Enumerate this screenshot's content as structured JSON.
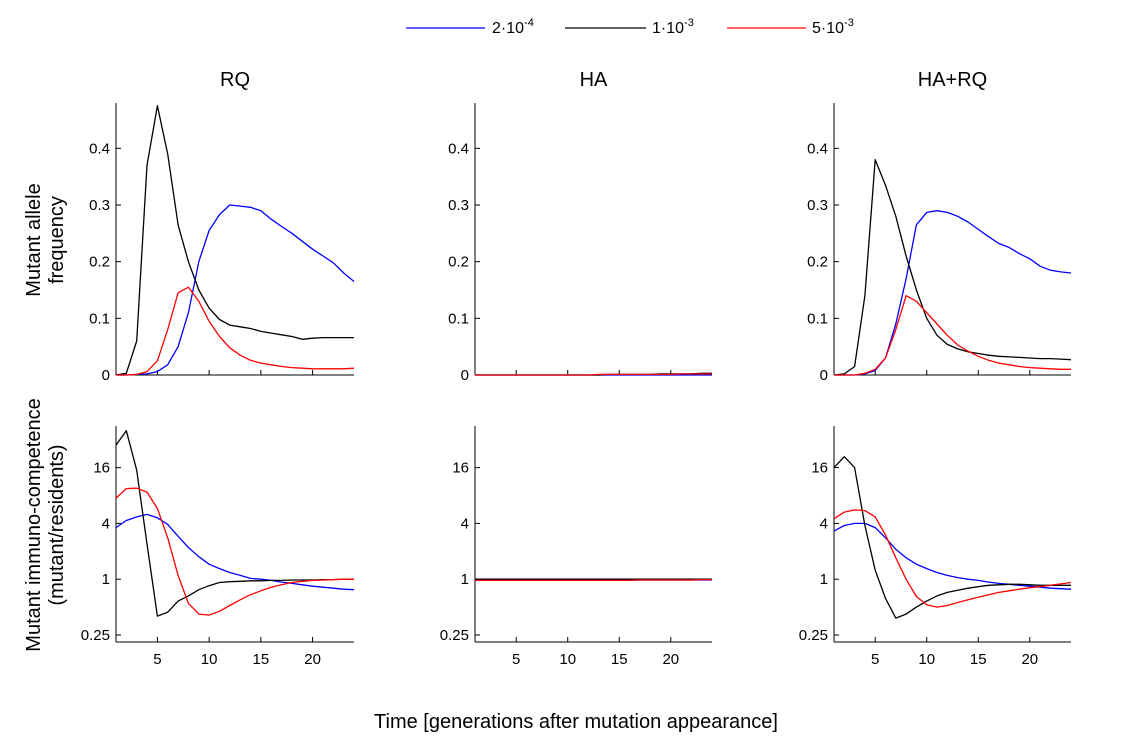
{
  "legend": [
    {
      "mantissa": "2·10",
      "exponent": "-4",
      "color": "#0000ff"
    },
    {
      "mantissa": "1·10",
      "exponent": "-3",
      "color": "#000000"
    },
    {
      "mantissa": "5·10",
      "exponent": "-3",
      "color": "#ff0000"
    }
  ],
  "x_axis_label": "Time [generations after mutation appearance]",
  "top_row_ylabel": [
    "Mutant allele",
    "frequency"
  ],
  "bottom_row_ylabel": [
    "Mutant immuno-competence",
    "(mutant/residents)"
  ],
  "chart_data": [
    {
      "type": "line",
      "title": "RQ",
      "xlim": [
        1,
        24
      ],
      "ylim": [
        0,
        0.48
      ],
      "xticks": [
        5,
        10,
        15,
        20
      ],
      "xtick_labels": [
        "5",
        "10",
        "15",
        "20"
      ],
      "yticks": [
        0,
        0.1,
        0.2,
        0.3,
        0.4
      ],
      "ytick_labels": [
        "0",
        "0.1",
        "0.2",
        "0.3",
        "0.4"
      ],
      "x": [
        1,
        2,
        3,
        4,
        5,
        6,
        7,
        8,
        9,
        10,
        11,
        12,
        13,
        14,
        15,
        16,
        17,
        18,
        19,
        20,
        21,
        22,
        23,
        24
      ],
      "series": [
        {
          "name": "2·10^-4",
          "color": "#0000ff",
          "values": [
            0,
            0,
            0.001,
            0.002,
            0.006,
            0.018,
            0.05,
            0.11,
            0.2,
            0.255,
            0.283,
            0.3,
            0.298,
            0.296,
            0.29,
            0.275,
            0.262,
            0.25,
            0.236,
            0.222,
            0.21,
            0.198,
            0.18,
            0.165
          ]
        },
        {
          "name": "1·10^-3",
          "color": "#000000",
          "values": [
            0,
            0.003,
            0.06,
            0.37,
            0.475,
            0.39,
            0.265,
            0.2,
            0.15,
            0.118,
            0.098,
            0.088,
            0.085,
            0.082,
            0.077,
            0.074,
            0.071,
            0.068,
            0.063,
            0.065,
            0.066,
            0.066,
            0.066,
            0.066
          ]
        },
        {
          "name": "5·10^-3",
          "color": "#ff0000",
          "values": [
            0,
            0,
            0.001,
            0.006,
            0.025,
            0.08,
            0.145,
            0.155,
            0.13,
            0.095,
            0.068,
            0.048,
            0.035,
            0.026,
            0.021,
            0.018,
            0.015,
            0.013,
            0.012,
            0.011,
            0.011,
            0.011,
            0.011,
            0.012
          ]
        }
      ]
    },
    {
      "type": "line",
      "title": "HA",
      "xlim": [
        1,
        24
      ],
      "ylim": [
        0,
        0.48
      ],
      "xticks": [
        5,
        10,
        15,
        20
      ],
      "xtick_labels": [
        "5",
        "10",
        "15",
        "20"
      ],
      "yticks": [
        0,
        0.1,
        0.2,
        0.3,
        0.4
      ],
      "ytick_labels": [
        "0",
        "0.1",
        "0.2",
        "0.3",
        "0.4"
      ],
      "x": [
        1,
        2,
        3,
        4,
        5,
        6,
        7,
        8,
        9,
        10,
        11,
        12,
        13,
        14,
        15,
        16,
        17,
        18,
        19,
        20,
        21,
        22,
        23,
        24
      ],
      "series": [
        {
          "name": "2·10^-4",
          "color": "#0000ff",
          "values": [
            0,
            0,
            0,
            0,
            0,
            0,
            0,
            0,
            0,
            0,
            0,
            0,
            0,
            0,
            0,
            0,
            0,
            0,
            0,
            0,
            0,
            0,
            0,
            0
          ]
        },
        {
          "name": "1·10^-3",
          "color": "#000000",
          "values": [
            0,
            0,
            0,
            0,
            0,
            0,
            0,
            0,
            0,
            0,
            0,
            0,
            0,
            0.001,
            0.001,
            0.001,
            0.001,
            0.001,
            0.002,
            0.002,
            0.002,
            0.002,
            0.003,
            0.003
          ]
        },
        {
          "name": "5·10^-3",
          "color": "#ff0000",
          "values": [
            0,
            0,
            0,
            0,
            0,
            0,
            0,
            0,
            0,
            0,
            0,
            0,
            0.001,
            0.001,
            0.001,
            0.001,
            0.001,
            0.001,
            0.001,
            0.001,
            0.002,
            0.002,
            0.002,
            0.002
          ]
        }
      ]
    },
    {
      "type": "line",
      "title": "HA+RQ",
      "xlim": [
        1,
        24
      ],
      "ylim": [
        0,
        0.48
      ],
      "xticks": [
        5,
        10,
        15,
        20
      ],
      "xtick_labels": [
        "5",
        "10",
        "15",
        "20"
      ],
      "yticks": [
        0,
        0.1,
        0.2,
        0.3,
        0.4
      ],
      "ytick_labels": [
        "0",
        "0.1",
        "0.2",
        "0.3",
        "0.4"
      ],
      "x": [
        1,
        2,
        3,
        4,
        5,
        6,
        7,
        8,
        9,
        10,
        11,
        12,
        13,
        14,
        15,
        16,
        17,
        18,
        19,
        20,
        21,
        22,
        23,
        24
      ],
      "series": [
        {
          "name": "2·10^-4",
          "color": "#0000ff",
          "values": [
            0,
            0,
            0,
            0.002,
            0.008,
            0.03,
            0.09,
            0.17,
            0.265,
            0.287,
            0.29,
            0.287,
            0.28,
            0.27,
            0.257,
            0.244,
            0.232,
            0.225,
            0.214,
            0.205,
            0.192,
            0.185,
            0.182,
            0.18
          ]
        },
        {
          "name": "1·10^-3",
          "color": "#000000",
          "values": [
            0,
            0.002,
            0.015,
            0.14,
            0.38,
            0.335,
            0.28,
            0.21,
            0.15,
            0.1,
            0.07,
            0.054,
            0.046,
            0.041,
            0.038,
            0.035,
            0.033,
            0.032,
            0.031,
            0.03,
            0.029,
            0.029,
            0.028,
            0.027
          ]
        },
        {
          "name": "5·10^-3",
          "color": "#ff0000",
          "values": [
            0,
            0,
            0,
            0.003,
            0.01,
            0.03,
            0.08,
            0.14,
            0.13,
            0.11,
            0.09,
            0.07,
            0.053,
            0.042,
            0.033,
            0.026,
            0.021,
            0.018,
            0.015,
            0.013,
            0.012,
            0.011,
            0.01,
            0.01
          ]
        }
      ]
    },
    {
      "type": "line",
      "title": "",
      "xlim": [
        1,
        24
      ],
      "ylim": [
        0.21,
        45
      ],
      "yscale": "log2",
      "xticks": [
        5,
        10,
        15,
        20
      ],
      "xtick_labels": [
        "5",
        "10",
        "15",
        "20"
      ],
      "yticks": [
        0.25,
        1,
        4,
        16
      ],
      "ytick_labels": [
        "0.25",
        "1",
        "4",
        "16"
      ],
      "x": [
        1,
        2,
        3,
        4,
        5,
        6,
        7,
        8,
        9,
        10,
        11,
        12,
        13,
        14,
        15,
        16,
        17,
        18,
        19,
        20,
        21,
        22,
        23,
        24
      ],
      "series": [
        {
          "name": "2·10^-4",
          "color": "#0000ff",
          "values": [
            3.6,
            4.3,
            4.7,
            5.0,
            4.6,
            3.9,
            2.9,
            2.2,
            1.75,
            1.45,
            1.3,
            1.18,
            1.1,
            1.02,
            1.0,
            0.97,
            0.93,
            0.9,
            0.87,
            0.84,
            0.82,
            0.8,
            0.78,
            0.77
          ]
        },
        {
          "name": "1·10^-3",
          "color": "#000000",
          "values": [
            28,
            40,
            15,
            2.4,
            0.4,
            0.44,
            0.58,
            0.66,
            0.77,
            0.85,
            0.92,
            0.94,
            0.95,
            0.96,
            0.96,
            0.97,
            0.97,
            0.98,
            0.98,
            0.98,
            0.99,
            0.99,
            1.0,
            1.0
          ]
        },
        {
          "name": "5·10^-3",
          "color": "#ff0000",
          "values": [
            7.5,
            9.5,
            9.6,
            8.7,
            5.8,
            2.8,
            1.1,
            0.55,
            0.42,
            0.41,
            0.45,
            0.52,
            0.6,
            0.68,
            0.75,
            0.82,
            0.87,
            0.92,
            0.95,
            0.97,
            0.98,
            0.99,
            1.0,
            1.0
          ]
        }
      ]
    },
    {
      "type": "line",
      "title": "",
      "xlim": [
        1,
        24
      ],
      "ylim": [
        0.21,
        45
      ],
      "yscale": "log2",
      "xticks": [
        5,
        10,
        15,
        20
      ],
      "xtick_labels": [
        "5",
        "10",
        "15",
        "20"
      ],
      "yticks": [
        0.25,
        1,
        4,
        16
      ],
      "ytick_labels": [
        "0.25",
        "1",
        "4",
        "16"
      ],
      "x": [
        1,
        2,
        3,
        4,
        5,
        6,
        7,
        8,
        9,
        10,
        11,
        12,
        13,
        14,
        15,
        16,
        17,
        18,
        19,
        20,
        21,
        22,
        23,
        24
      ],
      "series": [
        {
          "name": "2·10^-4",
          "color": "#0000ff",
          "values": [
            0.98,
            0.98,
            0.98,
            0.98,
            0.98,
            0.98,
            0.98,
            0.98,
            0.98,
            0.98,
            0.98,
            0.98,
            0.98,
            0.98,
            0.98,
            0.98,
            0.98,
            0.98,
            0.98,
            0.98,
            0.98,
            0.98,
            0.98,
            0.98
          ]
        },
        {
          "name": "1·10^-3",
          "color": "#000000",
          "values": [
            1.0,
            1.0,
            1.0,
            1.0,
            1.0,
            1.0,
            1.0,
            1.0,
            1.0,
            1.0,
            1.0,
            1.0,
            1.0,
            1.0,
            1.0,
            1.0,
            1.0,
            1.0,
            1.0,
            1.0,
            1.0,
            1.0,
            1.0,
            1.0
          ]
        },
        {
          "name": "5·10^-3",
          "color": "#ff0000",
          "values": [
            0.97,
            0.97,
            0.97,
            0.97,
            0.97,
            0.97,
            0.97,
            0.97,
            0.97,
            0.97,
            0.97,
            0.97,
            0.97,
            0.97,
            0.97,
            0.97,
            0.98,
            0.98,
            0.98,
            0.98,
            0.98,
            0.98,
            0.99,
            0.99
          ]
        }
      ]
    },
    {
      "type": "line",
      "title": "",
      "xlim": [
        1,
        24
      ],
      "ylim": [
        0.21,
        45
      ],
      "yscale": "log2",
      "xticks": [
        5,
        10,
        15,
        20
      ],
      "xtick_labels": [
        "5",
        "10",
        "15",
        "20"
      ],
      "yticks": [
        0.25,
        1,
        4,
        16
      ],
      "ytick_labels": [
        "0.25",
        "1",
        "4",
        "16"
      ],
      "x": [
        1,
        2,
        3,
        4,
        5,
        6,
        7,
        8,
        9,
        10,
        11,
        12,
        13,
        14,
        15,
        16,
        17,
        18,
        19,
        20,
        21,
        22,
        23,
        24
      ],
      "series": [
        {
          "name": "2·10^-4",
          "color": "#0000ff",
          "values": [
            3.3,
            3.8,
            4.0,
            4.0,
            3.6,
            2.8,
            2.1,
            1.7,
            1.45,
            1.3,
            1.18,
            1.1,
            1.04,
            1.0,
            0.97,
            0.93,
            0.9,
            0.88,
            0.86,
            0.84,
            0.82,
            0.8,
            0.79,
            0.78
          ]
        },
        {
          "name": "1·10^-3",
          "color": "#000000",
          "values": [
            16,
            21,
            16,
            3.8,
            1.25,
            0.62,
            0.38,
            0.42,
            0.5,
            0.58,
            0.66,
            0.72,
            0.76,
            0.8,
            0.83,
            0.86,
            0.87,
            0.88,
            0.88,
            0.87,
            0.86,
            0.86,
            0.86,
            0.86
          ]
        },
        {
          "name": "5·10^-3",
          "color": "#ff0000",
          "values": [
            4.5,
            5.3,
            5.6,
            5.5,
            4.7,
            3.0,
            1.7,
            1.0,
            0.65,
            0.53,
            0.5,
            0.52,
            0.56,
            0.6,
            0.64,
            0.68,
            0.72,
            0.75,
            0.78,
            0.81,
            0.83,
            0.86,
            0.89,
            0.92
          ]
        }
      ]
    }
  ]
}
